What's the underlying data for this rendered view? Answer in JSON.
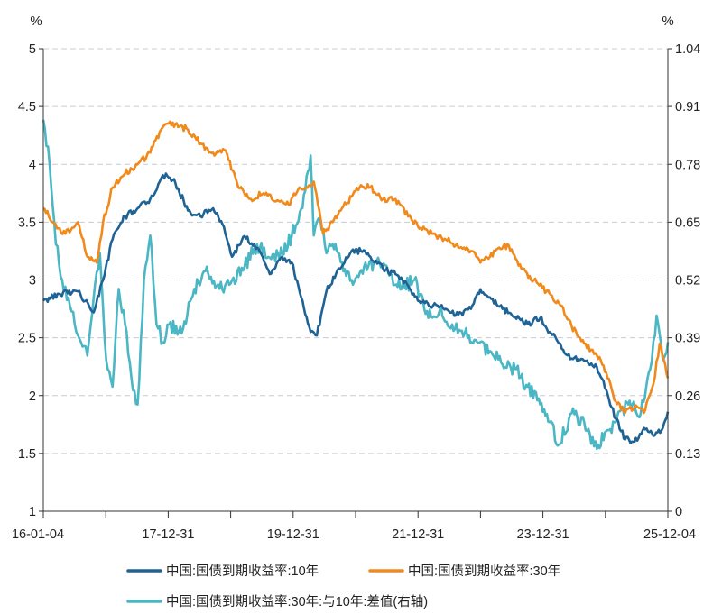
{
  "chart_data": {
    "type": "line",
    "left_unit": "%",
    "right_unit": "%",
    "x_tick_labels": [
      "16-01-04",
      "17-12-31",
      "19-12-31",
      "21-12-31",
      "23-12-31",
      "25-12-04"
    ],
    "y_left": {
      "ylim": [
        1,
        5
      ],
      "ticks": [
        "1",
        "1.5",
        "2",
        "2.5",
        "3",
        "3.5",
        "4",
        "4.5",
        "5"
      ]
    },
    "y_right": {
      "ylim": [
        0,
        1.04
      ],
      "ticks": [
        "0",
        "0.13",
        "0.26",
        "0.39",
        "0.52",
        "0.65",
        "0.78",
        "0.91",
        "1.04"
      ]
    },
    "grid": true,
    "legend": "bottom",
    "x_year_range": [
      2016.0,
      2025.93
    ],
    "series": [
      {
        "name": "中国:国债到期收益率:10年",
        "axis": "left",
        "color": "#1f6394",
        "x": [
          2016.0,
          2016.25,
          2016.55,
          2016.8,
          2016.95,
          2017.1,
          2017.3,
          2017.5,
          2017.7,
          2017.85,
          2017.95,
          2018.1,
          2018.3,
          2018.5,
          2018.7,
          2018.85,
          2019.0,
          2019.2,
          2019.4,
          2019.6,
          2019.8,
          2019.95,
          2020.1,
          2020.25,
          2020.35,
          2020.5,
          2020.7,
          2020.9,
          2021.05,
          2021.2,
          2021.4,
          2021.6,
          2021.8,
          2022.0,
          2022.2,
          2022.4,
          2022.6,
          2022.8,
          2022.95,
          2023.1,
          2023.3,
          2023.5,
          2023.7,
          2023.9,
          2024.05,
          2024.2,
          2024.4,
          2024.6,
          2024.8,
          2024.95,
          2025.1,
          2025.25,
          2025.4,
          2025.55,
          2025.7,
          2025.85,
          2025.93
        ],
        "values": [
          2.82,
          2.88,
          2.9,
          2.72,
          3.0,
          3.35,
          3.55,
          3.62,
          3.7,
          3.85,
          3.92,
          3.84,
          3.6,
          3.55,
          3.62,
          3.48,
          3.2,
          3.38,
          3.28,
          3.05,
          3.2,
          3.15,
          2.85,
          2.55,
          2.52,
          2.9,
          3.1,
          3.25,
          3.25,
          3.2,
          3.1,
          3.05,
          2.95,
          2.8,
          2.78,
          2.75,
          2.7,
          2.75,
          2.92,
          2.85,
          2.75,
          2.68,
          2.62,
          2.67,
          2.55,
          2.45,
          2.32,
          2.3,
          2.25,
          2.05,
          1.8,
          1.62,
          1.6,
          1.72,
          1.65,
          1.72,
          1.86
        ]
      },
      {
        "name": "中国:国债到期收益率:30年",
        "axis": "left",
        "color": "#f08a1c",
        "x": [
          2016.0,
          2016.15,
          2016.35,
          2016.55,
          2016.7,
          2016.85,
          2016.95,
          2017.1,
          2017.3,
          2017.5,
          2017.7,
          2017.85,
          2017.95,
          2018.1,
          2018.3,
          2018.5,
          2018.7,
          2018.9,
          2019.1,
          2019.3,
          2019.5,
          2019.7,
          2019.9,
          2020.05,
          2020.2,
          2020.3,
          2020.45,
          2020.6,
          2020.75,
          2020.9,
          2021.05,
          2021.2,
          2021.4,
          2021.6,
          2021.8,
          2022.0,
          2022.2,
          2022.4,
          2022.6,
          2022.8,
          2022.95,
          2023.1,
          2023.25,
          2023.4,
          2023.6,
          2023.8,
          2024.0,
          2024.2,
          2024.4,
          2024.6,
          2024.8,
          2024.95,
          2025.1,
          2025.25,
          2025.4,
          2025.55,
          2025.7,
          2025.8,
          2025.93
        ],
        "values": [
          3.62,
          3.5,
          3.4,
          3.5,
          3.2,
          3.15,
          3.5,
          3.8,
          3.92,
          4.0,
          4.1,
          4.28,
          4.35,
          4.35,
          4.3,
          4.18,
          4.1,
          4.12,
          3.8,
          3.7,
          3.75,
          3.68,
          3.65,
          3.78,
          3.8,
          3.85,
          3.4,
          3.5,
          3.62,
          3.72,
          3.82,
          3.8,
          3.7,
          3.7,
          3.55,
          3.45,
          3.4,
          3.35,
          3.28,
          3.25,
          3.15,
          3.2,
          3.28,
          3.3,
          3.1,
          3.0,
          2.9,
          2.8,
          2.6,
          2.45,
          2.35,
          2.2,
          1.95,
          1.85,
          1.9,
          1.85,
          2.1,
          2.45,
          2.15
        ]
      },
      {
        "name": "中国:国债到期收益率:30年:与10年:差值(右轴)",
        "axis": "right",
        "color": "#4bb6c4",
        "x": [
          2016.0,
          2016.1,
          2016.2,
          2016.3,
          2016.4,
          2016.5,
          2016.6,
          2016.7,
          2016.8,
          2016.9,
          2017.0,
          2017.1,
          2017.2,
          2017.3,
          2017.4,
          2017.5,
          2017.6,
          2017.7,
          2017.8,
          2017.9,
          2018.0,
          2018.2,
          2018.4,
          2018.6,
          2018.8,
          2019.0,
          2019.2,
          2019.4,
          2019.6,
          2019.8,
          2019.95,
          2020.1,
          2020.25,
          2020.3,
          2020.4,
          2020.5,
          2020.6,
          2020.75,
          2020.9,
          2021.1,
          2021.3,
          2021.5,
          2021.7,
          2021.9,
          2022.1,
          2022.3,
          2022.5,
          2022.7,
          2022.9,
          2023.1,
          2023.3,
          2023.5,
          2023.7,
          2023.9,
          2024.05,
          2024.2,
          2024.4,
          2024.6,
          2024.8,
          2024.95,
          2025.1,
          2025.3,
          2025.5,
          2025.65,
          2025.75,
          2025.85,
          2025.93
        ],
        "values": [
          0.88,
          0.78,
          0.6,
          0.52,
          0.48,
          0.42,
          0.38,
          0.35,
          0.48,
          0.58,
          0.34,
          0.28,
          0.5,
          0.42,
          0.3,
          0.24,
          0.52,
          0.62,
          0.42,
          0.38,
          0.42,
          0.4,
          0.5,
          0.55,
          0.5,
          0.52,
          0.55,
          0.6,
          0.57,
          0.58,
          0.62,
          0.68,
          0.8,
          0.62,
          0.66,
          0.58,
          0.6,
          0.56,
          0.52,
          0.55,
          0.56,
          0.53,
          0.5,
          0.52,
          0.45,
          0.45,
          0.42,
          0.4,
          0.38,
          0.36,
          0.33,
          0.32,
          0.28,
          0.24,
          0.2,
          0.15,
          0.22,
          0.2,
          0.14,
          0.18,
          0.2,
          0.24,
          0.22,
          0.32,
          0.44,
          0.34,
          0.38
        ]
      }
    ]
  }
}
